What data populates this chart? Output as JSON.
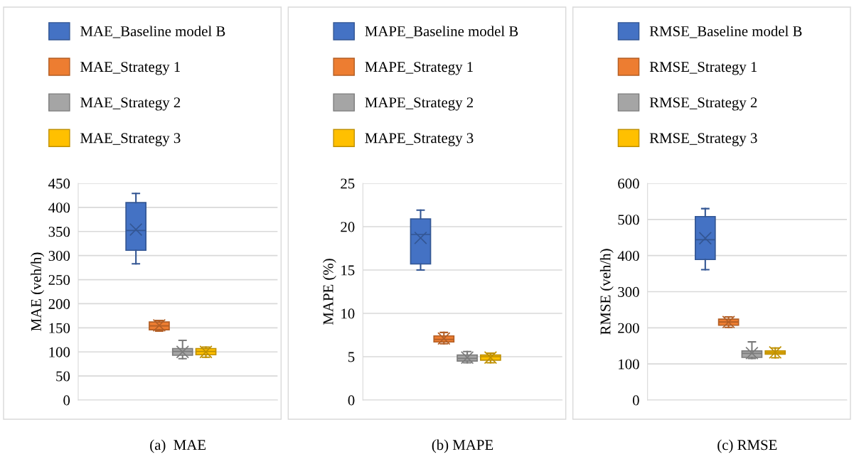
{
  "chart_data": [
    {
      "type": "box",
      "title": "(a)  MAE",
      "ylabel": "MAE (veh/h)",
      "categories": [
        null
      ],
      "ylim": [
        0,
        450
      ],
      "yticks": [
        0,
        50,
        100,
        150,
        200,
        250,
        300,
        350,
        400,
        450
      ],
      "grid": "y",
      "legend": "top",
      "tick_labels": "y",
      "series": [
        {
          "name": "MAE_Baseline model B",
          "color": "#4472c4",
          "boxes": [
            {
              "low": 283,
              "q1": 311,
              "median": 352,
              "q3": 410,
              "high": 429,
              "mean": 354
            }
          ]
        },
        {
          "name": "MAE_Strategy 1",
          "color": "#ed7d31",
          "boxes": [
            {
              "low": 143,
              "q1": 146,
              "median": 154,
              "q3": 162,
              "high": 165,
              "mean": 155
            }
          ]
        },
        {
          "name": "MAE_Strategy 2",
          "color": "#a5a5a5",
          "boxes": [
            {
              "low": 86,
              "q1": 93,
              "median": 101,
              "q3": 107,
              "high": 124,
              "mean": 100
            }
          ]
        },
        {
          "name": "MAE_Strategy 3",
          "color": "#ffc000",
          "boxes": [
            {
              "low": 89,
              "q1": 94,
              "median": 101,
              "q3": 107,
              "high": 110,
              "mean": 100
            }
          ]
        }
      ]
    },
    {
      "type": "box",
      "title": "(b) MAPE",
      "ylabel": "MAPE (%)",
      "categories": [
        null
      ],
      "ylim": [
        0,
        25
      ],
      "yticks": [
        0,
        5,
        10,
        15,
        20,
        25
      ],
      "grid": "y",
      "legend": "top",
      "tick_labels": "y",
      "series": [
        {
          "name": "MAPE_Baseline model B",
          "color": "#4472c4",
          "boxes": [
            {
              "low": 15.0,
              "q1": 15.7,
              "median": 19.1,
              "q3": 20.9,
              "high": 21.9,
              "mean": 18.7
            }
          ]
        },
        {
          "name": "MAPE_Strategy 1",
          "color": "#ed7d31",
          "boxes": [
            {
              "low": 6.5,
              "q1": 6.7,
              "median": 7.0,
              "q3": 7.4,
              "high": 7.8,
              "mean": 7.1
            }
          ]
        },
        {
          "name": "MAPE_Strategy 2",
          "color": "#a5a5a5",
          "boxes": [
            {
              "low": 4.3,
              "q1": 4.5,
              "median": 4.8,
              "q3": 5.2,
              "high": 5.6,
              "mean": 4.9
            }
          ]
        },
        {
          "name": "MAPE_Strategy 3",
          "color": "#ffc000",
          "boxes": [
            {
              "low": 4.3,
              "q1": 4.6,
              "median": 5.0,
              "q3": 5.2,
              "high": 5.4,
              "mean": 4.9
            }
          ]
        }
      ]
    },
    {
      "type": "box",
      "title": "(c) RMSE",
      "ylabel": "RMSE (veh/h)",
      "categories": [
        null
      ],
      "ylim": [
        0,
        600
      ],
      "yticks": [
        0,
        100,
        200,
        300,
        400,
        500,
        600
      ],
      "grid": "y",
      "legend": "top",
      "tick_labels": "y",
      "series": [
        {
          "name": "RMSE_Baseline model B",
          "color": "#4472c4",
          "boxes": [
            {
              "low": 361,
              "q1": 389,
              "median": 444,
              "q3": 508,
              "high": 530,
              "mean": 448
            }
          ]
        },
        {
          "name": "RMSE_Strategy 1",
          "color": "#ed7d31",
          "boxes": [
            {
              "low": 201,
              "q1": 207,
              "median": 216,
              "q3": 224,
              "high": 230,
              "mean": 216
            }
          ]
        },
        {
          "name": "RMSE_Strategy 2",
          "color": "#a5a5a5",
          "boxes": [
            {
              "low": 115,
              "q1": 118,
              "median": 129,
              "q3": 136,
              "high": 161,
              "mean": 130
            }
          ]
        },
        {
          "name": "RMSE_Strategy 3",
          "color": "#ffc000",
          "boxes": [
            {
              "low": 117,
              "q1": 127,
              "median": 131,
              "q3": 136,
              "high": 144,
              "mean": 132
            }
          ]
        }
      ]
    }
  ]
}
